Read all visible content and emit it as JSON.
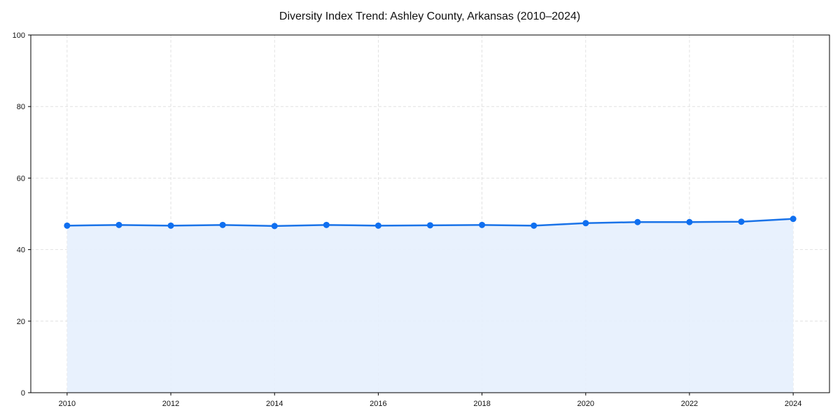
{
  "chart_data": {
    "type": "line",
    "title": "Diversity Index Trend: Ashley County, Arkansas (2010–2024)",
    "xlabel": "",
    "ylabel": "",
    "x": [
      2010,
      2011,
      2012,
      2013,
      2014,
      2015,
      2016,
      2017,
      2018,
      2019,
      2020,
      2021,
      2022,
      2023,
      2024
    ],
    "series": [
      {
        "name": "Diversity Index",
        "values": [
          46.7,
          46.9,
          46.7,
          46.9,
          46.6,
          46.9,
          46.7,
          46.8,
          46.9,
          46.7,
          47.4,
          47.7,
          47.7,
          47.8,
          48.6
        ],
        "color": "#1a73e8",
        "fill_color": "#e5effd",
        "marker": "circle",
        "area_fill": true
      }
    ],
    "xticks": [
      2010,
      2012,
      2014,
      2016,
      2018,
      2020,
      2022,
      2024
    ],
    "yticks": [
      0,
      20,
      40,
      60,
      80,
      100
    ],
    "xlim": [
      2009.3,
      2024.7
    ],
    "ylim": [
      0,
      100
    ],
    "grid": true,
    "legend": null
  }
}
